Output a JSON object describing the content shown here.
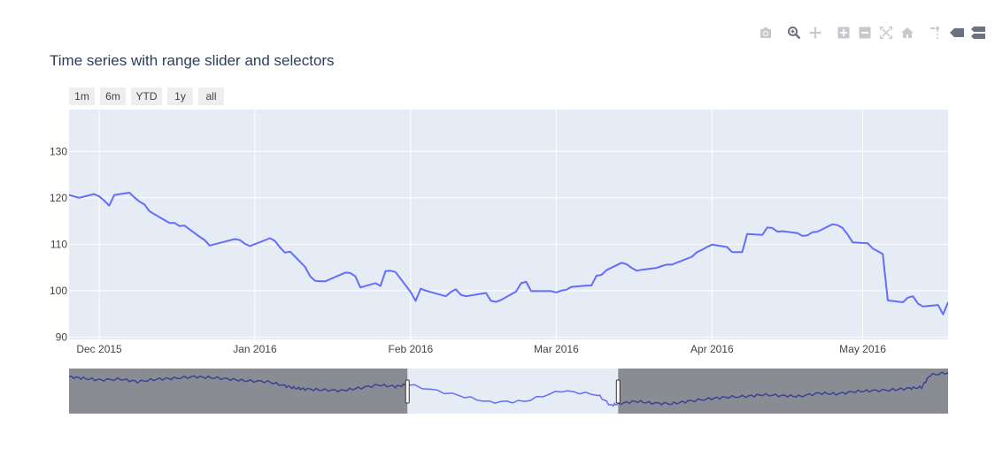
{
  "chart_data": {
    "type": "line",
    "title": "Time series with range slider and selectors",
    "range_selector": [
      "1m",
      "6m",
      "YTD",
      "1y",
      "all"
    ],
    "xlim": [
      "2015-11-25",
      "2016-05-18"
    ],
    "ylim": [
      89.5,
      139
    ],
    "yticks": [
      90,
      100,
      110,
      120,
      130
    ],
    "xticks": [
      {
        "date": "2015-12-01",
        "label": "Dec 2015"
      },
      {
        "date": "2016-01-01",
        "label": "Jan 2016"
      },
      {
        "date": "2016-02-01",
        "label": "Feb 2016"
      },
      {
        "date": "2016-03-01",
        "label": "Mar 2016"
      },
      {
        "date": "2016-04-01",
        "label": "Apr 2016"
      },
      {
        "date": "2016-05-01",
        "label": "May 2016"
      }
    ],
    "grid": true,
    "line_color": "#636efa",
    "series": [
      {
        "x": [
          "2015-11-25",
          "2015-11-27",
          "2015-11-30",
          "2015-12-01",
          "2015-12-02",
          "2015-12-03",
          "2015-12-04",
          "2015-12-07",
          "2015-12-08",
          "2015-12-09",
          "2015-12-10",
          "2015-12-11",
          "2015-12-14",
          "2015-12-15",
          "2015-12-16",
          "2015-12-17",
          "2015-12-18",
          "2015-12-21",
          "2015-12-22",
          "2015-12-23",
          "2015-12-24",
          "2015-12-28",
          "2015-12-29",
          "2015-12-30",
          "2015-12-31",
          "2016-01-04",
          "2016-01-05",
          "2016-01-06",
          "2016-01-07",
          "2016-01-08",
          "2016-01-11",
          "2016-01-12",
          "2016-01-13",
          "2016-01-14",
          "2016-01-15",
          "2016-01-19",
          "2016-01-20",
          "2016-01-21",
          "2016-01-22",
          "2016-01-25",
          "2016-01-26",
          "2016-01-27",
          "2016-01-28",
          "2016-01-29",
          "2016-02-01",
          "2016-02-02",
          "2016-02-03",
          "2016-02-04",
          "2016-02-05",
          "2016-02-08",
          "2016-02-09",
          "2016-02-10",
          "2016-02-11",
          "2016-02-12",
          "2016-02-16",
          "2016-02-17",
          "2016-02-18",
          "2016-02-19",
          "2016-02-22",
          "2016-02-23",
          "2016-02-24",
          "2016-02-25",
          "2016-02-26",
          "2016-02-29",
          "2016-03-01",
          "2016-03-02",
          "2016-03-03",
          "2016-03-04",
          "2016-03-07",
          "2016-03-08",
          "2016-03-09",
          "2016-03-10",
          "2016-03-11",
          "2016-03-14",
          "2016-03-15",
          "2016-03-16",
          "2016-03-17",
          "2016-03-18",
          "2016-03-21",
          "2016-03-22",
          "2016-03-23",
          "2016-03-24",
          "2016-03-28",
          "2016-03-29",
          "2016-03-30",
          "2016-03-31",
          "2016-04-01",
          "2016-04-04",
          "2016-04-05",
          "2016-04-06",
          "2016-04-07",
          "2016-04-08",
          "2016-04-11",
          "2016-04-12",
          "2016-04-13",
          "2016-04-14",
          "2016-04-15",
          "2016-04-18",
          "2016-04-19",
          "2016-04-20",
          "2016-04-21",
          "2016-04-22",
          "2016-04-25",
          "2016-04-26",
          "2016-04-27",
          "2016-04-28",
          "2016-04-29",
          "2016-05-02",
          "2016-05-03",
          "2016-05-04",
          "2016-05-05",
          "2016-05-06",
          "2016-05-09",
          "2016-05-10",
          "2016-05-11",
          "2016-05-12",
          "2016-05-13",
          "2016-05-16",
          "2016-05-17",
          "2016-05-18"
        ],
        "y": [
          120.6,
          120.0,
          120.8,
          120.3,
          119.4,
          118.3,
          120.6,
          121.1,
          120.1,
          119.2,
          118.6,
          117.1,
          115.2,
          114.6,
          114.6,
          113.9,
          114.0,
          111.6,
          110.9,
          109.7,
          110.0,
          111.1,
          110.9,
          110.1,
          109.6,
          111.3,
          110.7,
          109.3,
          108.2,
          108.4,
          105.1,
          103.1,
          102.1,
          102.0,
          102.0,
          103.9,
          103.8,
          103.1,
          100.7,
          101.6,
          101.0,
          104.2,
          104.3,
          104.0,
          99.7,
          97.8,
          100.4,
          100.0,
          99.7,
          98.8,
          99.7,
          100.3,
          99.1,
          98.8,
          99.5,
          97.8,
          97.6,
          98.0,
          99.8,
          101.6,
          101.9,
          99.9,
          99.9,
          99.9,
          99.6,
          100.0,
          100.2,
          100.8,
          101.1,
          101.1,
          103.2,
          103.4,
          104.4,
          106.0,
          105.7,
          104.9,
          104.3,
          104.5,
          104.9,
          105.3,
          105.6,
          105.6,
          107.3,
          108.3,
          108.8,
          109.4,
          109.9,
          109.4,
          108.3,
          108.3,
          108.3,
          112.2,
          112.0,
          113.6,
          113.5,
          112.7,
          112.8,
          112.4,
          111.8,
          111.9,
          112.6,
          112.7,
          114.3,
          114.1,
          113.5,
          112.1,
          110.4,
          110.2,
          109.1,
          108.5,
          107.9,
          97.9,
          97.5,
          98.5,
          98.8,
          97.2,
          96.6,
          96.9,
          94.9,
          97.5
        ]
      }
    ],
    "slider": {
      "xlim": [
        "2015-02-17",
        "2017-02-16"
      ],
      "ylim": [
        85,
        140
      ],
      "window": [
        "2015-11-25",
        "2016-05-18"
      ],
      "x": [
        "2015-02-17",
        "2015-03-01",
        "2015-03-15",
        "2015-04-01",
        "2015-04-15",
        "2015-05-01",
        "2015-05-15",
        "2015-06-01",
        "2015-06-15",
        "2015-07-01",
        "2015-07-15",
        "2015-08-01",
        "2015-08-15",
        "2015-08-24",
        "2015-09-01",
        "2015-09-15",
        "2015-10-01",
        "2015-10-15",
        "2015-11-01",
        "2015-11-15",
        "2015-11-25",
        "2016-01-01",
        "2016-02-01",
        "2016-03-01",
        "2016-04-01",
        "2016-05-01",
        "2016-05-12",
        "2016-05-18",
        "2016-06-01",
        "2016-06-15",
        "2016-07-01",
        "2016-07-15",
        "2016-08-01",
        "2016-08-15",
        "2016-09-01",
        "2016-09-15",
        "2016-10-01",
        "2016-10-15",
        "2016-11-01",
        "2016-11-15",
        "2016-12-01",
        "2016-12-15",
        "2017-01-01",
        "2017-01-15",
        "2017-01-25",
        "2017-02-01",
        "2017-02-16"
      ],
      "y": [
        130,
        128,
        126,
        127,
        124,
        127,
        128,
        130,
        129,
        127,
        125,
        124,
        119,
        116,
        115,
        114,
        113,
        116,
        120,
        118,
        120.5,
        109,
        99,
        100,
        113,
        108,
        95,
        97,
        100,
        98,
        97,
        100,
        103,
        105,
        106,
        108,
        107,
        106,
        110,
        109,
        112,
        113,
        114,
        116,
        117,
        132,
        135
      ]
    }
  }
}
